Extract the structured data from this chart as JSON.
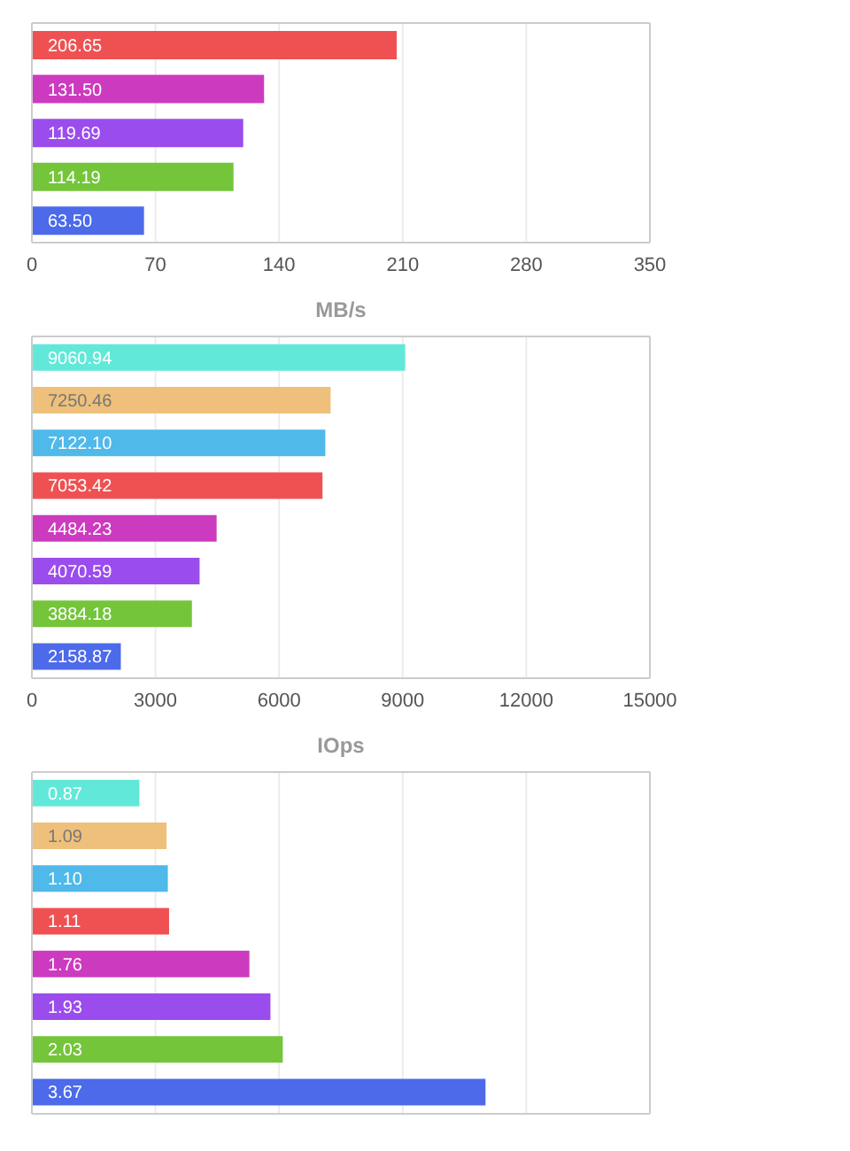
{
  "chart_data": [
    {
      "type": "bar",
      "orientation": "horizontal",
      "categories": [
        null,
        null,
        null,
        null,
        null
      ],
      "values": [
        206.65,
        131.5,
        119.69,
        114.19,
        63.5
      ],
      "value_labels": [
        "206.65",
        "131.50",
        "119.69",
        "114.19",
        "63.50"
      ],
      "colors": [
        "#ef5152",
        "#cc3bbf",
        "#9b4ced",
        "#74c53a",
        "#4c6aea"
      ],
      "xlabel": "MB/s",
      "xlim": [
        0,
        350
      ],
      "xticks": [
        0,
        70,
        140,
        210,
        280,
        350
      ],
      "grid": "x",
      "tick_labels": "x"
    },
    {
      "type": "bar",
      "orientation": "horizontal",
      "categories": [
        null,
        null,
        null,
        null,
        null,
        null,
        null,
        null
      ],
      "values": [
        9060.94,
        7250.46,
        7122.1,
        7053.42,
        4484.23,
        4070.59,
        3884.18,
        2158.87
      ],
      "value_labels": [
        "9060.94",
        "7250.46",
        "7122.10",
        "7053.42",
        "4484.23",
        "4070.59",
        "3884.18",
        "2158.87"
      ],
      "colors": [
        "#62e8d8",
        "#eec07b",
        "#4fb9ea",
        "#ef5152",
        "#cc3bbf",
        "#9b4ced",
        "#74c53a",
        "#4c6aea"
      ],
      "xlabel": "IOps",
      "xlim": [
        0,
        15000
      ],
      "xticks": [
        0,
        3000,
        6000,
        9000,
        12000,
        15000
      ],
      "grid": "x",
      "tick_labels": "x"
    },
    {
      "type": "bar",
      "orientation": "horizontal",
      "categories": [
        null,
        null,
        null,
        null,
        null,
        null,
        null,
        null
      ],
      "values": [
        0.87,
        1.09,
        1.1,
        1.11,
        1.76,
        1.93,
        2.03,
        3.67
      ],
      "value_labels": [
        "0.87",
        "1.09",
        "1.10",
        "1.11",
        "1.76",
        "1.93",
        "2.03",
        "3.67"
      ],
      "colors": [
        "#62e8d8",
        "#eec07b",
        "#4fb9ea",
        "#ef5152",
        "#cc3bbf",
        "#9b4ced",
        "#74c53a",
        "#4c6aea"
      ],
      "xlim": [
        0,
        5
      ],
      "xticks": [
        {
          "value": 0,
          "label": null
        },
        {
          "value": 1,
          "label": null
        },
        {
          "value": 2,
          "label": null
        },
        {
          "value": 3,
          "label": null
        },
        {
          "value": 4,
          "label": null
        },
        {
          "value": 5,
          "label": null
        }
      ],
      "grid": "x",
      "tick_labels": false
    }
  ]
}
